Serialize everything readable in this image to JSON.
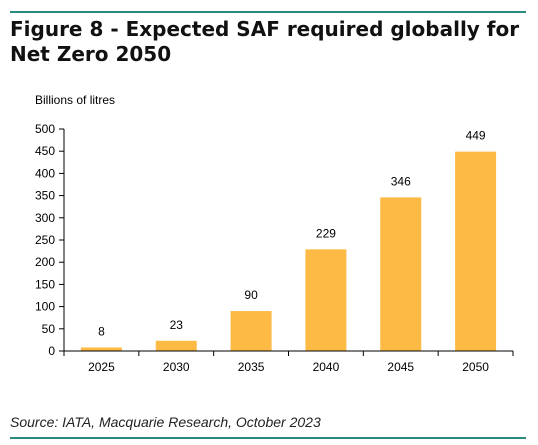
{
  "figure": {
    "title": "Figure 8 - Expected SAF required globally for Net Zero 2050",
    "source": "Source: IATA, Macquarie Research, October 2023"
  },
  "colors": {
    "rule": "#2a8a7e",
    "bar": "#fdba45"
  },
  "chart_data": {
    "type": "bar",
    "title": "Figure 8 - Expected SAF required globally for Net Zero 2050",
    "ylabel": "Billions of litres",
    "xlabel": "",
    "categories": [
      "2025",
      "2030",
      "2035",
      "2040",
      "2045",
      "2050"
    ],
    "values": [
      8,
      23,
      90,
      229,
      346,
      449
    ],
    "ylim": [
      0,
      500
    ],
    "yticks": [
      0,
      50,
      100,
      150,
      200,
      250,
      300,
      350,
      400,
      450,
      500
    ],
    "grid": false,
    "legend": "none",
    "data_labels": true
  }
}
